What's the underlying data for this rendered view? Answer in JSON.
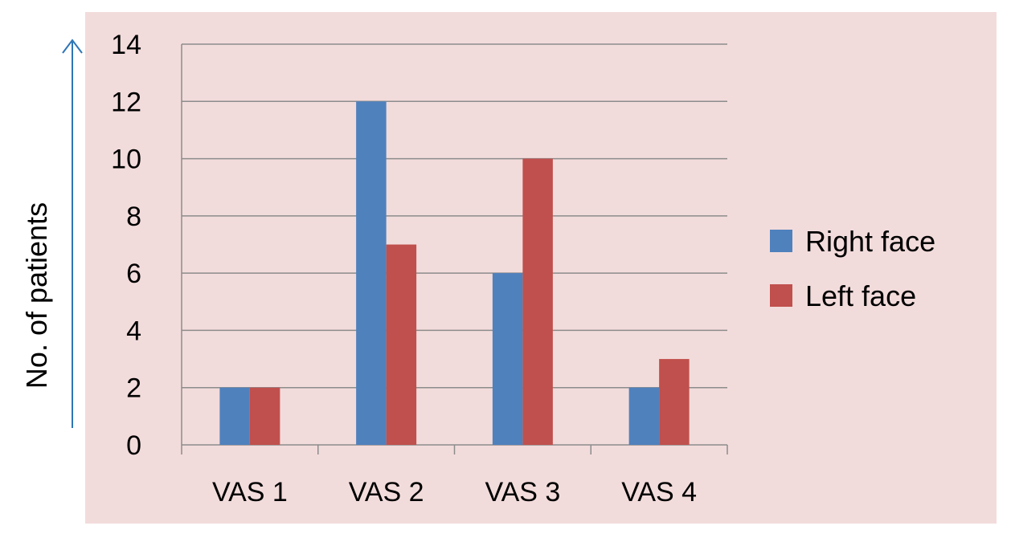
{
  "chart_data": {
    "type": "bar",
    "categories": [
      "VAS 1",
      "VAS 2",
      "VAS 3",
      "VAS 4"
    ],
    "series": [
      {
        "name": "Right face",
        "values": [
          2,
          12,
          6,
          2
        ],
        "color": "#4F81BD"
      },
      {
        "name": "Left face",
        "values": [
          2,
          7,
          10,
          3
        ],
        "color": "#C0504D"
      }
    ],
    "title": "",
    "xlabel": "",
    "ylabel": "No. of patients",
    "ylim": [
      0,
      14
    ],
    "yticks": [
      "0",
      "2",
      "4",
      "6",
      "8",
      "10",
      "12",
      "14"
    ],
    "grid": true,
    "legend_position": "right",
    "colors": {
      "plot_background": "#F2DCDB",
      "gridline": "#8C8C8C",
      "axis_arrow": "#2E75B6"
    }
  }
}
